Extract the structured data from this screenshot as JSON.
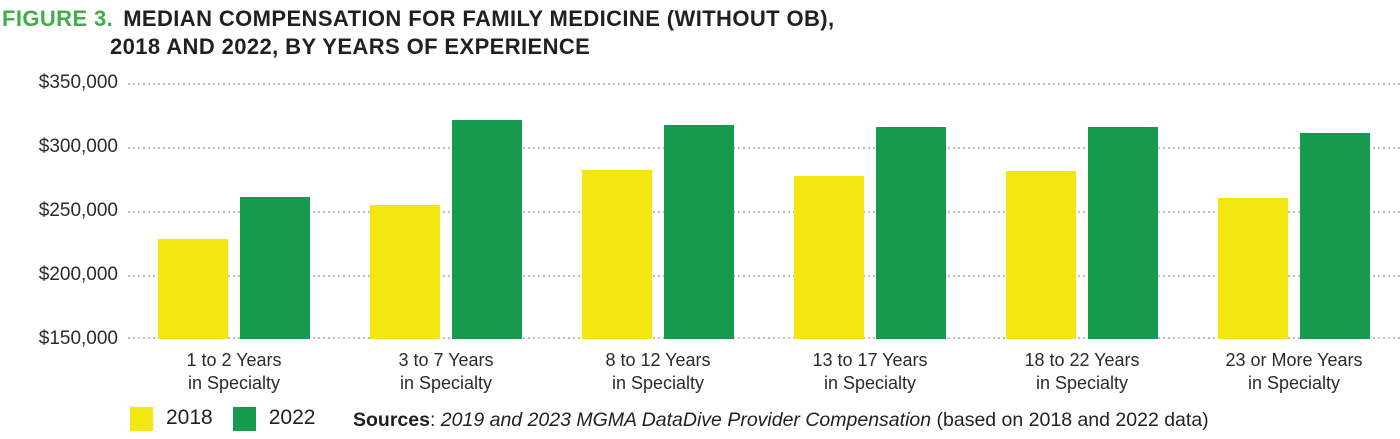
{
  "title": {
    "figure_label": "FIGURE 3.",
    "line1": "MEDIAN COMPENSATION FOR FAMILY MEDICINE (WITHOUT OB),",
    "line2": "2018 AND 2022, BY YEARS OF EXPERIENCE"
  },
  "chart_data": {
    "type": "bar",
    "title": "FIGURE 3. MEDIAN COMPENSATION FOR FAMILY MEDICINE (WITHOUT OB), 2018 AND 2022, BY YEARS OF EXPERIENCE",
    "categories": [
      {
        "line1": "1 to 2 Years",
        "line2": "in Specialty"
      },
      {
        "line1": "3 to 7 Years",
        "line2": "in Specialty"
      },
      {
        "line1": "8 to 12 Years",
        "line2": "in Specialty"
      },
      {
        "line1": "13 to 17 Years",
        "line2": "in Specialty"
      },
      {
        "line1": "18 to 22 Years",
        "line2": "in Specialty"
      },
      {
        "line1": "23 or More Years",
        "line2": "in Specialty"
      }
    ],
    "series": [
      {
        "name": "2018",
        "color": "#f2e711",
        "values": [
          228000,
          255000,
          282000,
          277000,
          281000,
          260000
        ]
      },
      {
        "name": "2022",
        "color": "#169a4d",
        "values": [
          261000,
          321000,
          317000,
          316000,
          316000,
          311000
        ]
      }
    ],
    "ylim": [
      150000,
      350000
    ],
    "yticks": [
      {
        "label": "$350,000",
        "value": 350000
      },
      {
        "label": "$300,000",
        "value": 300000
      },
      {
        "label": "$250,000",
        "value": 250000
      },
      {
        "label": "$200,000",
        "value": 200000
      },
      {
        "label": "$150,000",
        "value": 150000
      }
    ],
    "xlabel": "",
    "ylabel": "",
    "grid": "horizontal-dotted",
    "legend_position": "bottom-left"
  },
  "footer": {
    "legend": [
      {
        "label": "2018",
        "color": "#f2e711"
      },
      {
        "label": "2022",
        "color": "#169a4d"
      }
    ],
    "sources": {
      "label": "Sources",
      "separator": ": ",
      "italic_text": "2019 and 2023 MGMA DataDive Provider Compensation",
      "regular_text": " (based on 2018 and 2022 data)"
    }
  },
  "colors": {
    "figure_label_green": "#3fae49",
    "bar_yellow": "#f2e711",
    "bar_green": "#169a4d",
    "title_black": "#231f20",
    "gridline_gray": "#bfbfbf"
  }
}
